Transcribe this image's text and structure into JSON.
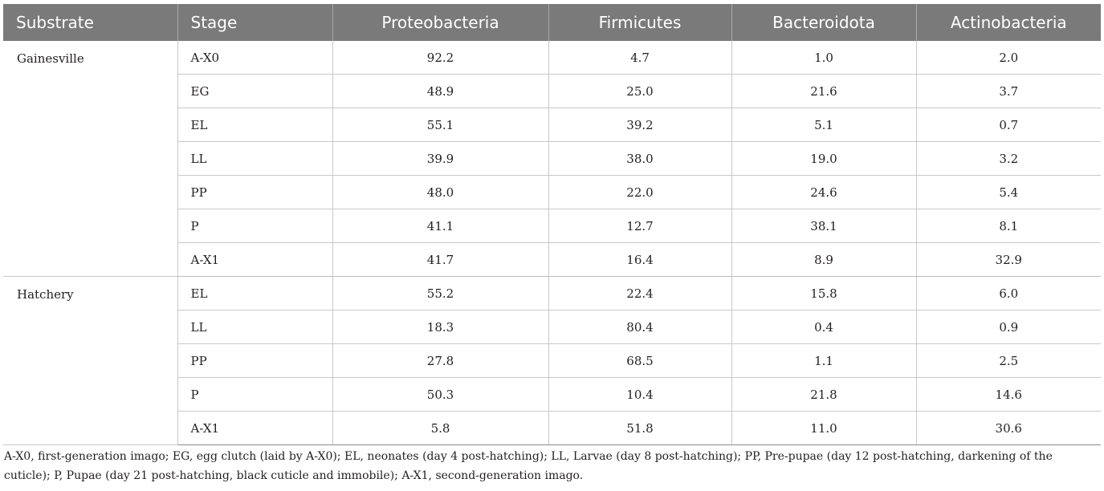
{
  "table": {
    "headers": [
      "Substrate",
      "Stage",
      "Proteobacteria",
      "Firmicutes",
      "Bacteroidota",
      "Actinobacteria"
    ],
    "groups": [
      {
        "substrate": "Gainesville",
        "rows": [
          {
            "stage": "A-X0",
            "proteobacteria": "92.2",
            "firmicutes": "4.7",
            "bacteroidota": "1.0",
            "actinobacteria": "2.0"
          },
          {
            "stage": "EG",
            "proteobacteria": "48.9",
            "firmicutes": "25.0",
            "bacteroidota": "21.6",
            "actinobacteria": "3.7"
          },
          {
            "stage": "EL",
            "proteobacteria": "55.1",
            "firmicutes": "39.2",
            "bacteroidota": "5.1",
            "actinobacteria": "0.7"
          },
          {
            "stage": "LL",
            "proteobacteria": "39.9",
            "firmicutes": "38.0",
            "bacteroidota": "19.0",
            "actinobacteria": "3.2"
          },
          {
            "stage": "PP",
            "proteobacteria": "48.0",
            "firmicutes": "22.0",
            "bacteroidota": "24.6",
            "actinobacteria": "5.4"
          },
          {
            "stage": "P",
            "proteobacteria": "41.1",
            "firmicutes": "12.7",
            "bacteroidota": "38.1",
            "actinobacteria": "8.1"
          },
          {
            "stage": "A-X1",
            "proteobacteria": "41.7",
            "firmicutes": "16.4",
            "bacteroidota": "8.9",
            "actinobacteria": "32.9"
          }
        ]
      },
      {
        "substrate": "Hatchery",
        "rows": [
          {
            "stage": "EL",
            "proteobacteria": "55.2",
            "firmicutes": "22.4",
            "bacteroidota": "15.8",
            "actinobacteria": "6.0"
          },
          {
            "stage": "LL",
            "proteobacteria": "18.3",
            "firmicutes": "80.4",
            "bacteroidota": "0.4",
            "actinobacteria": "0.9"
          },
          {
            "stage": "PP",
            "proteobacteria": "27.8",
            "firmicutes": "68.5",
            "bacteroidota": "1.1",
            "actinobacteria": "2.5"
          },
          {
            "stage": "P",
            "proteobacteria": "50.3",
            "firmicutes": "10.4",
            "bacteroidota": "21.8",
            "actinobacteria": "14.6"
          },
          {
            "stage": "A-X1",
            "proteobacteria": "5.8",
            "firmicutes": "51.8",
            "bacteroidota": "11.0",
            "actinobacteria": "30.6"
          }
        ]
      }
    ]
  },
  "footnote": "A-X0, first-generation imago; EG, egg clutch (laid by A-X0); EL, neonates (day 4 post-hatching); LL, Larvae (day 8 post-hatching); PP, Pre-pupae (day 12 post-hatching, darkening of the cuticle); P, Pupae (day 21 post-hatching, black cuticle and immobile); A-X1, second-generation imago.",
  "colors": {
    "header_bg": "#7a7a7a",
    "header_text": "#ffffff",
    "grid_line": "#c9c9c9",
    "text": "#231f20"
  }
}
